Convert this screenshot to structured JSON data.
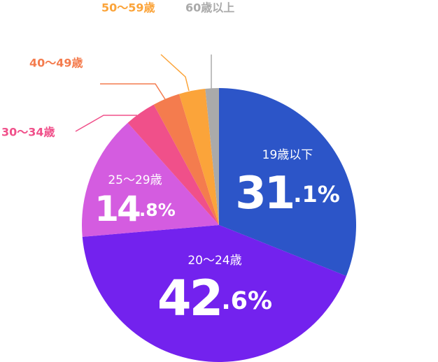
{
  "chart_data": {
    "type": "pie",
    "categories": [
      "19歳以下",
      "20～24歳",
      "25～29歳",
      "30～34歳",
      "40～49歳",
      "50～59歳",
      "60歳以上"
    ],
    "values": [
      31.1,
      42.6,
      14.8,
      3.7,
      3.2,
      3.1,
      1.6
    ],
    "value_labels": [
      "31.1%",
      "42.6%",
      "14.8%",
      null,
      null,
      null,
      null
    ],
    "colors": [
      "#2c55c8",
      "#7322ee",
      "#d45ce0",
      "#f0508a",
      "#f47c4e",
      "#fba43a",
      "#aaaaaa"
    ]
  }
}
